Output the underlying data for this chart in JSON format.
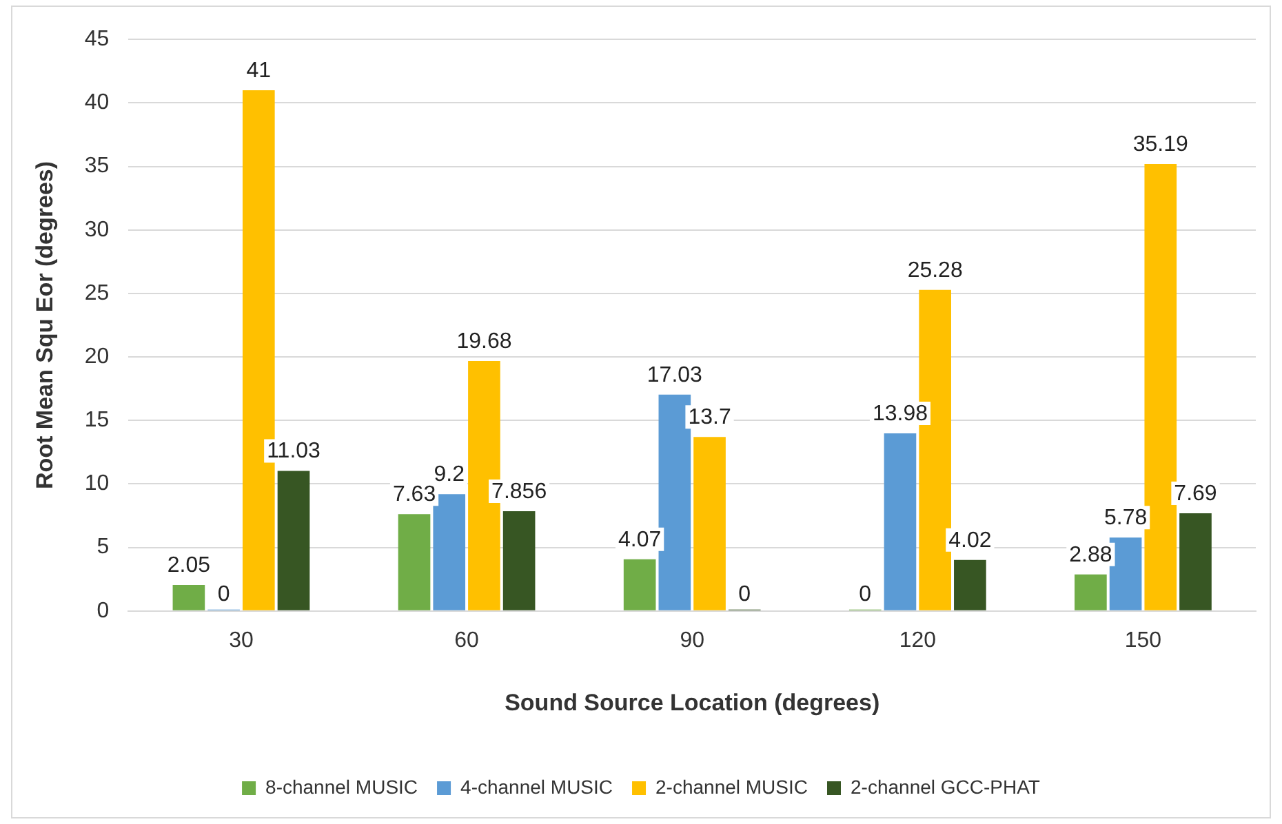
{
  "chart_data": {
    "type": "bar",
    "xlabel": "Sound Source Location (degrees)",
    "ylabel": "Root Mean Squ Eor (degrees)",
    "categories": [
      "30",
      "60",
      "90",
      "120",
      "150"
    ],
    "series": [
      {
        "name": "8-channel MUSIC",
        "color": "#70ad47",
        "values": [
          2.05,
          7.63,
          4.07,
          0,
          2.88
        ]
      },
      {
        "name": "4-channel MUSIC",
        "color": "#5b9bd5",
        "values": [
          0,
          9.2,
          17.03,
          13.98,
          5.78
        ]
      },
      {
        "name": "2-channel MUSIC",
        "color": "#ffc000",
        "values": [
          41,
          19.68,
          13.7,
          25.28,
          35.19
        ]
      },
      {
        "name": "2-channel GCC-PHAT",
        "color": "#375623",
        "values": [
          11.03,
          7.856,
          0,
          4.02,
          7.69
        ]
      }
    ],
    "ylim": [
      0,
      45
    ],
    "yticks": [
      0,
      5,
      10,
      15,
      20,
      25,
      30,
      35,
      40,
      45
    ],
    "grid": "y",
    "legend": "bottom",
    "data_labels": true
  }
}
